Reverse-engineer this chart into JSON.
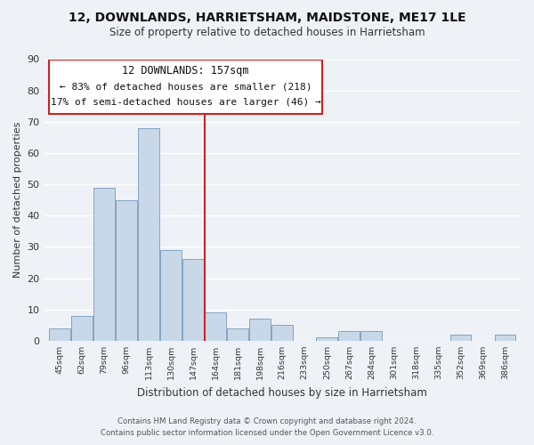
{
  "title": "12, DOWNLANDS, HARRIETSHAM, MAIDSTONE, ME17 1LE",
  "subtitle": "Size of property relative to detached houses in Harrietsham",
  "xlabel": "Distribution of detached houses by size in Harrietsham",
  "ylabel": "Number of detached properties",
  "bar_color": "#c8d8e8",
  "bar_edge_color": "#7799bb",
  "categories": [
    "45sqm",
    "62sqm",
    "79sqm",
    "96sqm",
    "113sqm",
    "130sqm",
    "147sqm",
    "164sqm",
    "181sqm",
    "198sqm",
    "216sqm",
    "233sqm",
    "250sqm",
    "267sqm",
    "284sqm",
    "301sqm",
    "318sqm",
    "335sqm",
    "352sqm",
    "369sqm",
    "386sqm"
  ],
  "values": [
    4,
    8,
    49,
    45,
    68,
    29,
    26,
    9,
    4,
    7,
    5,
    0,
    1,
    3,
    3,
    0,
    0,
    0,
    2,
    0,
    2
  ],
  "ylim": [
    0,
    90
  ],
  "yticks": [
    0,
    10,
    20,
    30,
    40,
    50,
    60,
    70,
    80,
    90
  ],
  "prop_line_color": "#cc2222",
  "annotation_title": "12 DOWNLANDS: 157sqm",
  "annotation_line1": "← 83% of detached houses are smaller (218)",
  "annotation_line2": "17% of semi-detached houses are larger (46) →",
  "annotation_box_color": "#cc2222",
  "footer_line1": "Contains HM Land Registry data © Crown copyright and database right 2024.",
  "footer_line2": "Contains public sector information licensed under the Open Government Licence v3.0.",
  "bg_color": "#eef2f7",
  "plot_bg_color": "#eef2f7",
  "grid_color": "#ffffff"
}
